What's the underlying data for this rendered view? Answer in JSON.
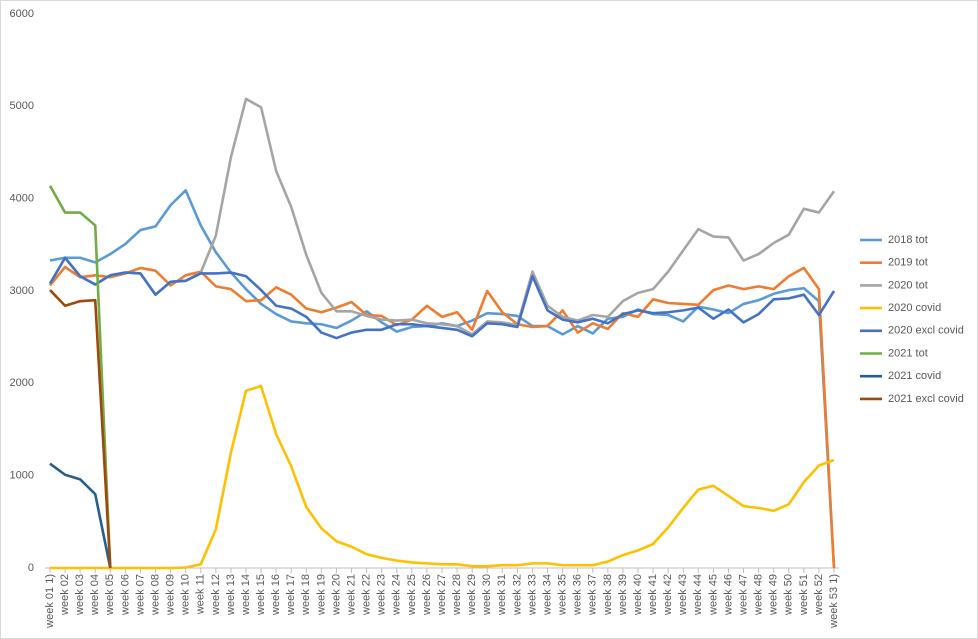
{
  "chart_data": {
    "type": "line",
    "categories": [
      "week 01 1)",
      "week 02",
      "week 03",
      "week 04",
      "week 05",
      "week 06",
      "week 07",
      "week 08",
      "week 09",
      "week 10",
      "week 11",
      "week 12",
      "week 13",
      "week 14",
      "week 15",
      "week 16",
      "week 17",
      "week 18",
      "week 19",
      "week 20",
      "week 21",
      "week 22",
      "week 23",
      "week 24",
      "week 25",
      "week 26",
      "week 27",
      "week 28",
      "week 29",
      "week 30",
      "week 31",
      "week 32",
      "week 33",
      "week 34",
      "week 35",
      "week 36",
      "week 37",
      "week 38",
      "week 39",
      "week 40",
      "week 41",
      "week 42",
      "week 43",
      "week 44",
      "week 45",
      "week 46",
      "week 47",
      "week 48",
      "week 49",
      "week 50",
      "week 51",
      "week 52",
      "week 53 1)"
    ],
    "series": [
      {
        "name": "2018 tot",
        "color": "#5b9bd5",
        "values": [
          3330,
          3360,
          3360,
          3310,
          3400,
          3510,
          3660,
          3700,
          3930,
          4090,
          3710,
          3420,
          3200,
          3020,
          2860,
          2750,
          2670,
          2650,
          2640,
          2600,
          2680,
          2780,
          2660,
          2560,
          2610,
          2620,
          2650,
          2620,
          2680,
          2760,
          2750,
          2730,
          2620,
          2620,
          2530,
          2620,
          2540,
          2700,
          2720,
          2800,
          2750,
          2740,
          2670,
          2830,
          2800,
          2760,
          2860,
          2900,
          2970,
          3010,
          3030,
          2890,
          0
        ]
      },
      {
        "name": "2019 tot",
        "color": "#ed7d31",
        "values": [
          3060,
          3260,
          3150,
          3170,
          3150,
          3190,
          3250,
          3220,
          3060,
          3170,
          3210,
          3050,
          3020,
          2890,
          2900,
          3040,
          2960,
          2810,
          2770,
          2820,
          2880,
          2740,
          2730,
          2630,
          2690,
          2840,
          2720,
          2770,
          2580,
          3000,
          2770,
          2640,
          2610,
          2620,
          2790,
          2550,
          2650,
          2590,
          2760,
          2720,
          2910,
          2870,
          2860,
          2850,
          3010,
          3060,
          3020,
          3050,
          3020,
          3160,
          3250,
          3020,
          0
        ]
      },
      {
        "name": "2020 tot",
        "color": "#a5a5a5",
        "values": [
          3080,
          3360,
          3160,
          3070,
          3170,
          3200,
          3190,
          2960,
          3100,
          3110,
          3200,
          3600,
          4450,
          5080,
          4990,
          4300,
          3910,
          3390,
          2980,
          2780,
          2780,
          2730,
          2690,
          2680,
          2690,
          2650,
          2640,
          2620,
          2530,
          2670,
          2660,
          2630,
          3210,
          2840,
          2720,
          2680,
          2740,
          2720,
          2890,
          2980,
          3020,
          3210,
          3440,
          3670,
          3590,
          3580,
          3330,
          3400,
          3520,
          3610,
          3890,
          3850,
          4080
        ]
      },
      {
        "name": "2020 covid",
        "color": "#ffc000",
        "values": [
          0,
          0,
          0,
          0,
          0,
          0,
          0,
          0,
          0,
          5,
          40,
          420,
          1250,
          1920,
          1970,
          1450,
          1100,
          660,
          430,
          290,
          230,
          150,
          110,
          80,
          60,
          50,
          40,
          40,
          20,
          20,
          30,
          30,
          50,
          50,
          30,
          30,
          30,
          70,
          140,
          190,
          260,
          440,
          650,
          850,
          890,
          780,
          670,
          650,
          620,
          690,
          930,
          1110,
          1170
        ]
      },
      {
        "name": "2020 excl covid",
        "color": "#4472c4",
        "values": [
          3080,
          3360,
          3160,
          3070,
          3170,
          3200,
          3190,
          2960,
          3100,
          3110,
          3190,
          3190,
          3200,
          3160,
          3010,
          2840,
          2810,
          2720,
          2550,
          2490,
          2550,
          2580,
          2580,
          2640,
          2640,
          2620,
          2600,
          2580,
          2510,
          2650,
          2640,
          2610,
          3160,
          2790,
          2690,
          2660,
          2700,
          2650,
          2750,
          2790,
          2760,
          2770,
          2790,
          2820,
          2700,
          2800,
          2660,
          2750,
          2910,
          2920,
          2960,
          2740,
          3000
        ]
      },
      {
        "name": "2021 tot",
        "color": "#70ad47",
        "values": [
          4140,
          3850,
          3850,
          3710,
          0,
          null,
          null,
          null,
          null,
          null,
          null,
          null,
          null,
          null,
          null,
          null,
          null,
          null,
          null,
          null,
          null,
          null,
          null,
          null,
          null,
          null,
          null,
          null,
          null,
          null,
          null,
          null,
          null,
          null,
          null,
          null,
          null,
          null,
          null,
          null,
          null,
          null,
          null,
          null,
          null,
          null,
          null,
          null,
          null,
          null,
          null,
          null,
          null
        ]
      },
      {
        "name": "2021 covid",
        "color": "#255e91",
        "values": [
          1130,
          1010,
          960,
          800,
          0,
          null,
          null,
          null,
          null,
          null,
          null,
          null,
          null,
          null,
          null,
          null,
          null,
          null,
          null,
          null,
          null,
          null,
          null,
          null,
          null,
          null,
          null,
          null,
          null,
          null,
          null,
          null,
          null,
          null,
          null,
          null,
          null,
          null,
          null,
          null,
          null,
          null,
          null,
          null,
          null,
          null,
          null,
          null,
          null,
          null,
          null,
          null,
          null
        ]
      },
      {
        "name": "2021 excl covid",
        "color": "#9e480e",
        "values": [
          3010,
          2840,
          2890,
          2900,
          0,
          null,
          null,
          null,
          null,
          null,
          null,
          null,
          null,
          null,
          null,
          null,
          null,
          null,
          null,
          null,
          null,
          null,
          null,
          null,
          null,
          null,
          null,
          null,
          null,
          null,
          null,
          null,
          null,
          null,
          null,
          null,
          null,
          null,
          null,
          null,
          null,
          null,
          null,
          null,
          null,
          null,
          null,
          null,
          null,
          null,
          null,
          null,
          null
        ]
      }
    ],
    "ylim": [
      0,
      6000
    ],
    "yticks": [
      0,
      1000,
      2000,
      3000,
      4000,
      5000,
      6000
    ],
    "grid": false,
    "legend": "right"
  }
}
